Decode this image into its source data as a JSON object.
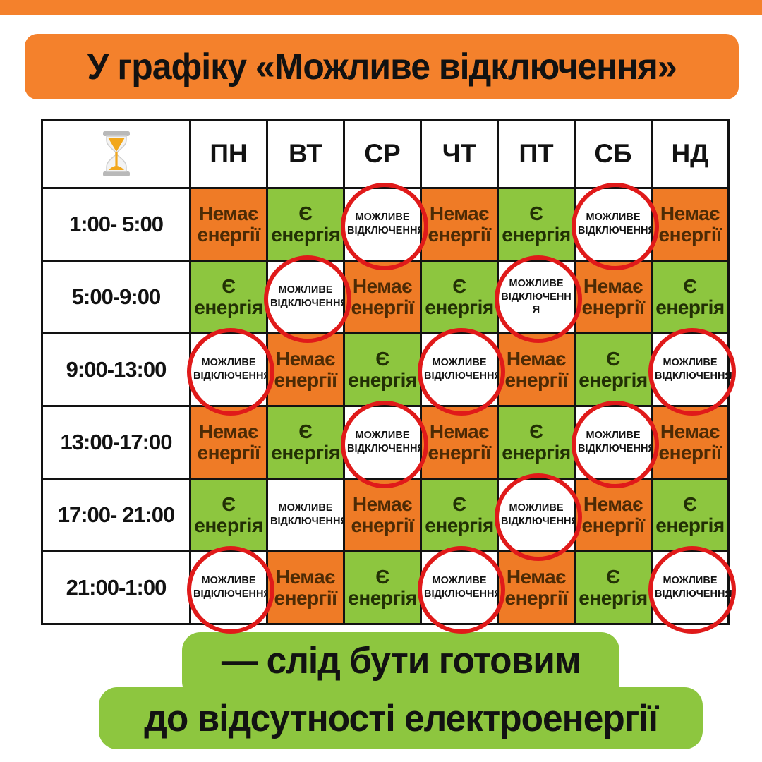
{
  "title": "У графіку «Можливе відключення»",
  "colors": {
    "banner_orange": "#F4812C",
    "cell_orange": "#EF7B26",
    "cell_green": "#8DC63F",
    "footer_green": "#8DC63F",
    "circle_red": "#E01A1A",
    "text_black": "#121212"
  },
  "schedule": {
    "time_icon": "hourglass-icon",
    "columns": [
      "ПН",
      "ВТ",
      "СР",
      "ЧТ",
      "ПТ",
      "СБ",
      "НД"
    ],
    "legend": {
      "off": "Немає енергії",
      "on": "Є енергія",
      "maybe": "МОЖЛИВЕ ВІДКЛЮЧЕННЯ"
    },
    "rows": [
      {
        "time": "1:00- 5:00",
        "cells": [
          {
            "state": "off",
            "label": "Немає енергії",
            "circled": false
          },
          {
            "state": "on",
            "label": "Є енергія",
            "circled": false
          },
          {
            "state": "maybe",
            "label": "МОЖЛИВЕ ВІДКЛЮЧЕННЯ",
            "circled": true
          },
          {
            "state": "off",
            "label": "Немає енергії",
            "circled": false
          },
          {
            "state": "on",
            "label": "Є енергія",
            "circled": false
          },
          {
            "state": "maybe",
            "label": "МОЖЛИВЕ ВІДКЛЮЧЕННЯ",
            "circled": true
          },
          {
            "state": "off",
            "label": "Немає енергії",
            "circled": false
          }
        ]
      },
      {
        "time": "5:00-9:00",
        "cells": [
          {
            "state": "on",
            "label": "Є енергія",
            "circled": false
          },
          {
            "state": "maybe",
            "label": "МОЖЛИВЕ ВІДКЛЮЧЕННЯ",
            "circled": true
          },
          {
            "state": "off",
            "label": "Немає енергії",
            "circled": false
          },
          {
            "state": "on",
            "label": "Є енергія",
            "circled": false
          },
          {
            "state": "maybe",
            "label": "МОЖЛИВЕ ВІДКЛЮЧЕНН Я",
            "circled": true
          },
          {
            "state": "off",
            "label": "Немає енергії",
            "circled": false
          },
          {
            "state": "on",
            "label": "Є енергія",
            "circled": false
          }
        ]
      },
      {
        "time": "9:00-13:00",
        "cells": [
          {
            "state": "maybe",
            "label": "МОЖЛИВЕ ВІДКЛЮЧЕННЯ",
            "circled": true
          },
          {
            "state": "off",
            "label": "Немає енергії",
            "circled": false
          },
          {
            "state": "on",
            "label": "Є енергія",
            "circled": false
          },
          {
            "state": "maybe",
            "label": "МОЖЛИВЕ ВІДКЛЮЧЕННЯ",
            "circled": true
          },
          {
            "state": "off",
            "label": "Немає енергії",
            "circled": false
          },
          {
            "state": "on",
            "label": "Є енергія",
            "circled": false
          },
          {
            "state": "maybe",
            "label": "МОЖЛИВЕ ВІДКЛЮЧЕННЯ",
            "circled": true
          }
        ]
      },
      {
        "time": "13:00-17:00",
        "cells": [
          {
            "state": "off",
            "label": "Немає енергії",
            "circled": false
          },
          {
            "state": "on",
            "label": "Є енергія",
            "circled": false
          },
          {
            "state": "maybe",
            "label": "МОЖЛИВЕ ВІДКЛЮЧЕННЯ",
            "circled": true
          },
          {
            "state": "off",
            "label": "Немає енергії",
            "circled": false
          },
          {
            "state": "on",
            "label": "Є енергія",
            "circled": false
          },
          {
            "state": "maybe",
            "label": "МОЖЛИВЕ ВІДКЛЮЧЕННЯ",
            "circled": true
          },
          {
            "state": "off",
            "label": "Немає енергії",
            "circled": false
          }
        ]
      },
      {
        "time": "17:00- 21:00",
        "cells": [
          {
            "state": "on",
            "label": "Є енергія",
            "circled": false
          },
          {
            "state": "maybe",
            "label": "МОЖЛИВЕ ВІДКЛЮЧЕННЯ",
            "circled": false
          },
          {
            "state": "off",
            "label": "Немає енергії",
            "circled": false
          },
          {
            "state": "on",
            "label": "Є енергія",
            "circled": false
          },
          {
            "state": "maybe",
            "label": "МОЖЛИВЕ ВІДКЛЮЧЕННЯ",
            "circled": true
          },
          {
            "state": "off",
            "label": "Немає енергії",
            "circled": false
          },
          {
            "state": "on",
            "label": "Є енергія",
            "circled": false
          }
        ]
      },
      {
        "time": "21:00-1:00",
        "cells": [
          {
            "state": "maybe",
            "label": "МОЖЛИВЕ ВІДКЛЮЧЕННЯ",
            "circled": true
          },
          {
            "state": "off",
            "label": "Немає енергії",
            "circled": false
          },
          {
            "state": "on",
            "label": "Є енергія",
            "circled": false
          },
          {
            "state": "maybe",
            "label": "МОЖЛИВЕ ВІДКЛЮЧЕННЯ",
            "circled": true
          },
          {
            "state": "off",
            "label": "Немає енергії",
            "circled": false
          },
          {
            "state": "on",
            "label": "Є енергія",
            "circled": false
          },
          {
            "state": "maybe",
            "label": "МОЖЛИВЕ ВІДКЛЮЧЕННЯ",
            "circled": true
          }
        ]
      }
    ]
  },
  "footer": {
    "line1": "— слід бути готовим",
    "line2": "до відсутності електроенергії"
  },
  "chart_data": {
    "type": "table",
    "title": "У графіку «Можливе відключення»",
    "columns": [
      "",
      "ПН",
      "ВТ",
      "СР",
      "ЧТ",
      "ПТ",
      "СБ",
      "НД"
    ],
    "rows": [
      [
        "1:00- 5:00",
        "Немає енергії",
        "Є енергія",
        "МОЖЛИВЕ ВІДКЛЮЧЕННЯ",
        "Немає енергії",
        "Є енергія",
        "МОЖЛИВЕ ВІДКЛЮЧЕННЯ",
        "Немає енергії"
      ],
      [
        "5:00-9:00",
        "Є енергія",
        "МОЖЛИВЕ ВІДКЛЮЧЕННЯ",
        "Немає енергії",
        "Є енергія",
        "МОЖЛИВЕ ВІДКЛЮЧЕННЯ",
        "Немає енергії",
        "Є енергія"
      ],
      [
        "9:00-13:00",
        "МОЖЛИВЕ ВІДКЛЮЧЕННЯ",
        "Немає енергії",
        "Є енергія",
        "МОЖЛИВЕ ВІДКЛЮЧЕННЯ",
        "Немає енергії",
        "Є енергія",
        "МОЖЛИВЕ ВІДКЛЮЧЕННЯ"
      ],
      [
        "13:00-17:00",
        "Немає енергії",
        "Є енергія",
        "МОЖЛИВЕ ВІДКЛЮЧЕННЯ",
        "Немає енергії",
        "Є енергія",
        "МОЖЛИВЕ ВІДКЛЮЧЕННЯ",
        "Немає енергії"
      ],
      [
        "17:00- 21:00",
        "Є енергія",
        "МОЖЛИВЕ ВІДКЛЮЧЕННЯ",
        "Немає енергії",
        "Є енергія",
        "МОЖЛИВЕ ВІДКЛЮЧЕННЯ",
        "Немає енергії",
        "Є енергія"
      ],
      [
        "21:00-1:00",
        "МОЖЛИВЕ ВІДКЛЮЧЕННЯ",
        "Немає енергії",
        "Є енергія",
        "МОЖЛИВЕ ВІДКЛЮЧЕННЯ",
        "Немає енергії",
        "Є енергія",
        "МОЖЛИВЕ ВІДКЛЮЧЕННЯ"
      ]
    ]
  }
}
